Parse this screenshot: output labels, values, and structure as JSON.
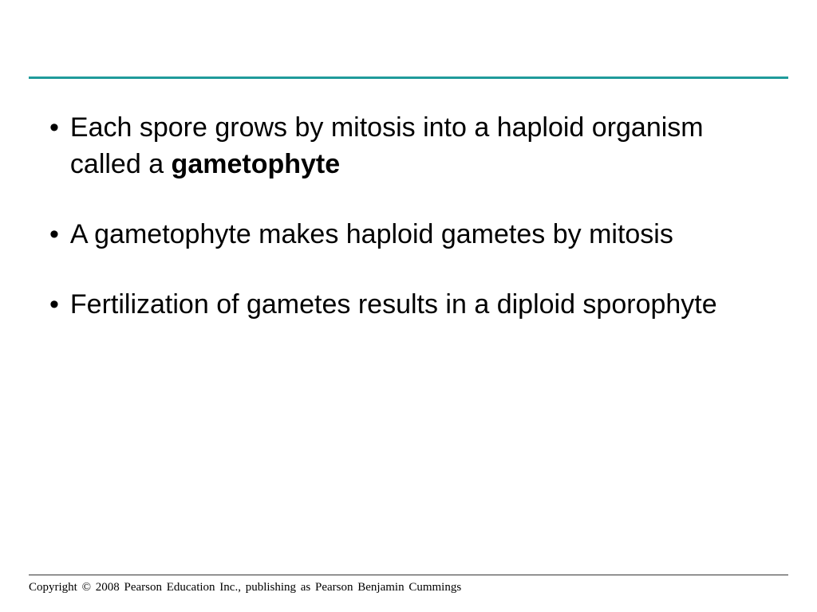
{
  "colors": {
    "rule_teal": "#1f9b9b",
    "bottom_rule": "#333333",
    "text": "#000000",
    "background": "#ffffff"
  },
  "typography": {
    "body_font": "Arial",
    "body_size_pt": 26,
    "copyright_font": "Times New Roman",
    "copyright_size_pt": 11
  },
  "bullets": [
    {
      "pre": "Each spore grows by mitosis into a haploid organism called a ",
      "bold": "gametophyte",
      "post": ""
    },
    {
      "pre": "A gametophyte makes haploid gametes by mitosis",
      "bold": "",
      "post": ""
    },
    {
      "pre": "Fertilization of gametes results in a diploid sporophyte",
      "bold": "",
      "post": ""
    }
  ],
  "copyright": "Copyright © 2008 Pearson Education Inc., publishing  as Pearson Benjamin Cummings"
}
